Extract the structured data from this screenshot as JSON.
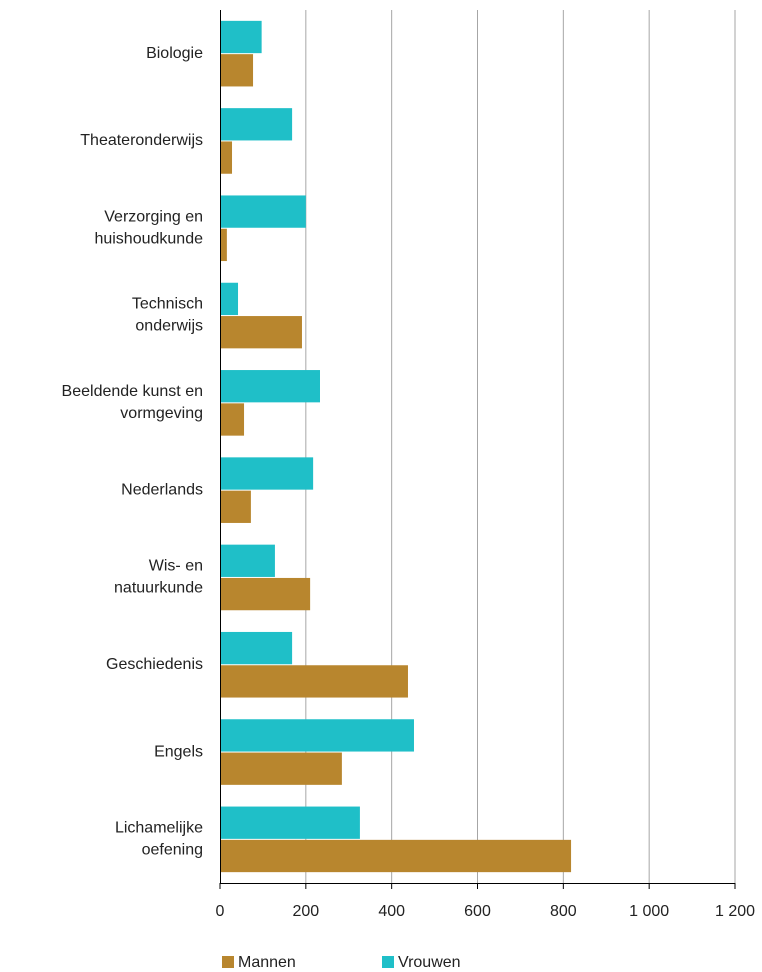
{
  "chart_data": {
    "type": "barh",
    "categories": [
      "Biologie",
      "Theateronderwijs",
      "Verzorging en\nhuishoudkunde",
      "Technisch\nonderwijs",
      "Beeldende kunst en\nvormgeving",
      "Nederlands",
      "Wis- en\nnatuurkunde",
      "Geschiedenis",
      "Engels",
      "Lichamelijke\noefening"
    ],
    "series": [
      {
        "name": "Mannen",
        "color": "#b8862e",
        "values": [
          77,
          28,
          16,
          191,
          56,
          72,
          210,
          438,
          284,
          818
        ]
      },
      {
        "name": "Vrouwen",
        "color": "#1fbfc8",
        "values": [
          97,
          168,
          200,
          42,
          233,
          217,
          128,
          168,
          452,
          326
        ]
      }
    ],
    "xlim": [
      0,
      1200
    ],
    "xticks": [
      0,
      200,
      400,
      600,
      800,
      {
        "value": 1000,
        "label": "1 000"
      },
      {
        "value": 1200,
        "label": "1 200"
      }
    ],
    "grid": true,
    "legend": "bottom"
  }
}
